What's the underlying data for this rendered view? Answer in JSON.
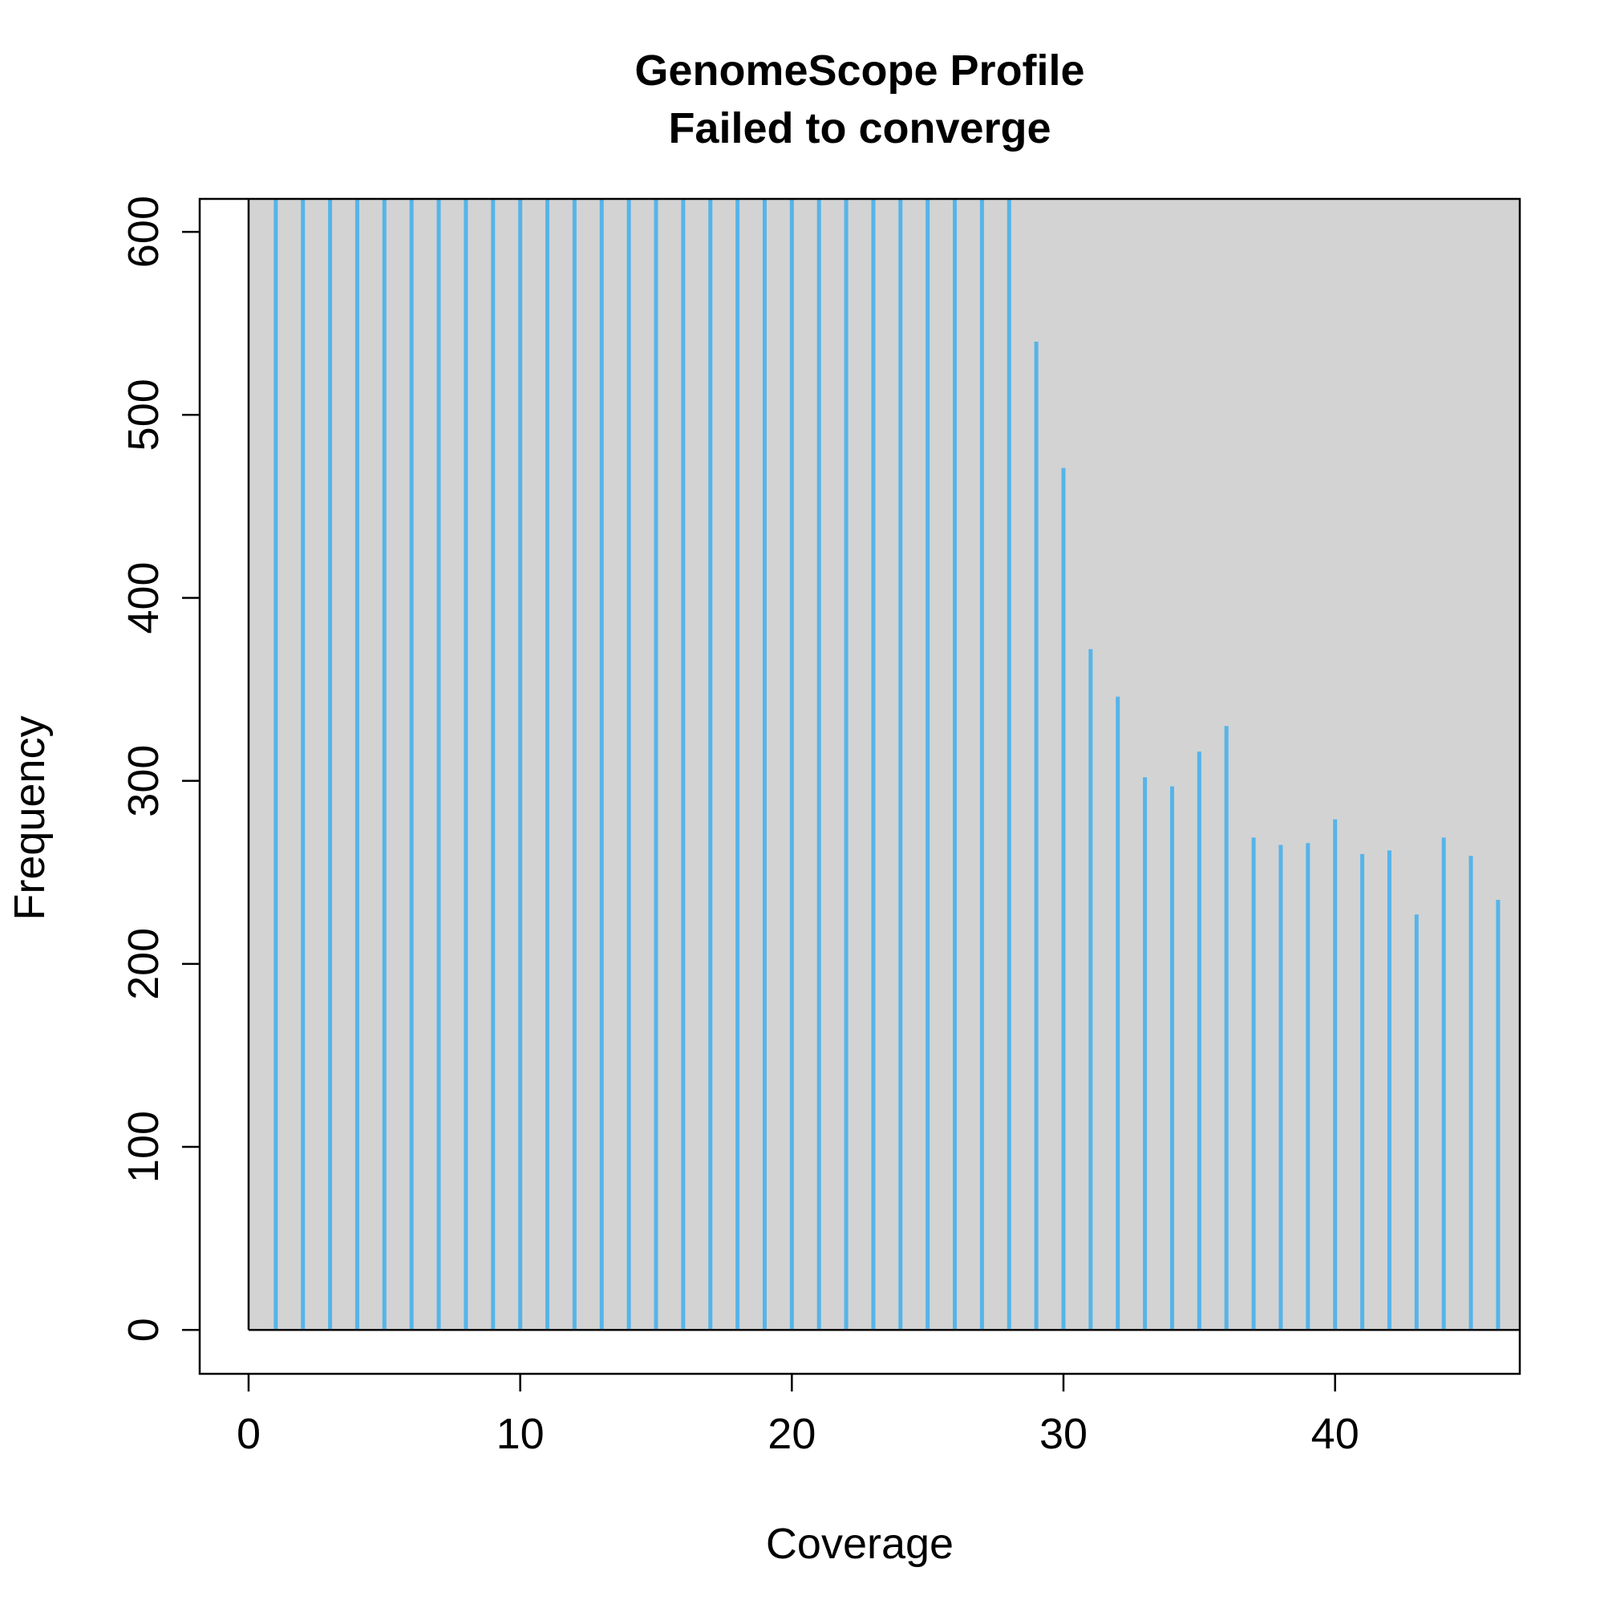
{
  "chart_data": {
    "type": "bar",
    "title": "GenomeScope Profile",
    "subtitle": "Failed to converge",
    "xlabel": "Coverage",
    "ylabel": "Frequency",
    "xlim": [
      -1.8,
      46.8
    ],
    "ylim": [
      -24,
      618
    ],
    "xticks": [
      0,
      10,
      20,
      30,
      40
    ],
    "yticks": [
      0,
      100,
      200,
      300,
      400,
      500,
      600
    ],
    "grid": false,
    "legend": "none",
    "colors": {
      "bar": "#56B4E9",
      "plot_background": "#D3D3D3",
      "axis": "#000000"
    },
    "series": [
      {
        "x": [
          1,
          2,
          3,
          4,
          5,
          6,
          7,
          8,
          9,
          10,
          11,
          12,
          13,
          14,
          15,
          16,
          17,
          18,
          19,
          20,
          21,
          22,
          23,
          24,
          25,
          26,
          27,
          28,
          29,
          30,
          31,
          32,
          33,
          34,
          35,
          36,
          37,
          38,
          39,
          40,
          41,
          42,
          43,
          44,
          45,
          46
        ],
        "values": [
          618,
          618,
          618,
          618,
          618,
          618,
          618,
          618,
          618,
          618,
          618,
          618,
          618,
          618,
          618,
          618,
          618,
          618,
          618,
          618,
          618,
          618,
          618,
          618,
          618,
          618,
          618,
          618,
          540,
          471,
          372,
          346,
          302,
          297,
          316,
          330,
          269,
          265,
          266,
          279,
          260,
          262,
          227,
          269,
          259,
          235
        ]
      }
    ]
  }
}
